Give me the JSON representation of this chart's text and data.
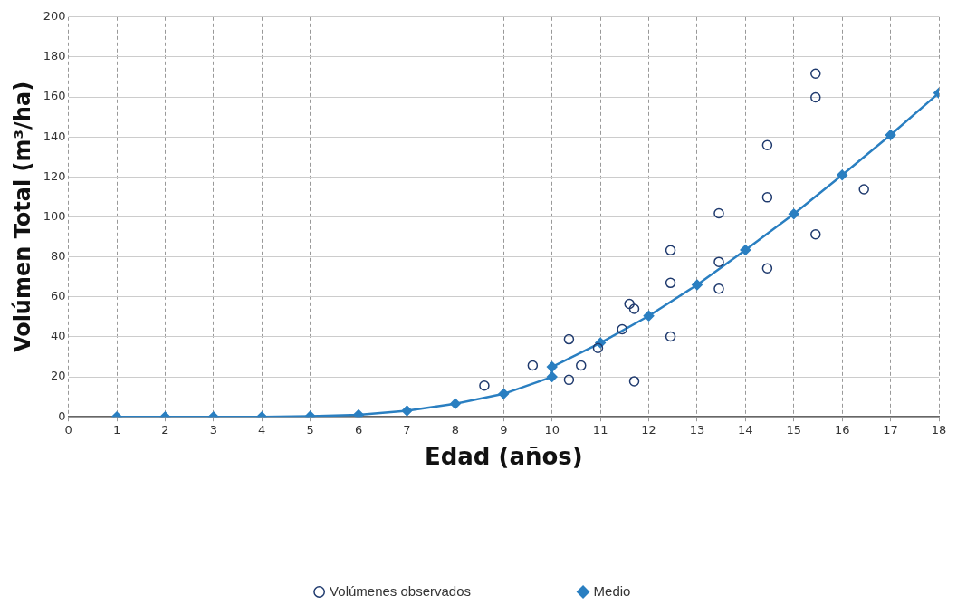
{
  "chart_data": {
    "type": "scatter",
    "xlabel": "Edad (años)",
    "ylabel": "Volúmen Total (m³/ha)",
    "xlim": [
      0,
      18
    ],
    "xticks": [
      0,
      1,
      2,
      3,
      4,
      5,
      6,
      7,
      8,
      9,
      10,
      11,
      12,
      13,
      14,
      15,
      16,
      17,
      18
    ],
    "ylim": [
      0,
      200
    ],
    "yticks": [
      0,
      20,
      40,
      60,
      80,
      100,
      120,
      140,
      160,
      180,
      200
    ],
    "grid": true,
    "legend": "bottom",
    "series": [
      {
        "name": "Volúmenes observados",
        "type": "scatter",
        "marker": "circle",
        "color": "#1f3a6e",
        "x": [
          8.6,
          9.6,
          10.35,
          10.35,
          10.6,
          10.95,
          11.45,
          11.6,
          11.7,
          11.7,
          12.45,
          12.45,
          12.45,
          13.45,
          13.45,
          13.45,
          14.45,
          14.45,
          14.45,
          15.45,
          15.45,
          15.45,
          16.45
        ],
        "values": [
          15.6,
          25.7,
          38.8,
          18.5,
          25.7,
          34.4,
          43.8,
          56.5,
          54,
          17.8,
          83.3,
          67,
          40.2,
          101.8,
          77.5,
          64.1,
          135.9,
          109.8,
          74.3,
          171.7,
          159.8,
          91.3,
          113.8
        ]
      },
      {
        "name": "Medio",
        "type": "line",
        "marker": "diamond",
        "line_style": "solid",
        "color": "#2a7fc1",
        "x": [
          1,
          2,
          3,
          4,
          5,
          6,
          7,
          8,
          9,
          10,
          10,
          11,
          12,
          13,
          14,
          15,
          16,
          17,
          18
        ],
        "values": [
          0,
          0,
          0,
          0,
          0.3,
          1,
          3,
          6.5,
          11.5,
          20,
          25,
          37,
          50.5,
          66,
          83.5,
          101.5,
          121,
          141,
          162
        ]
      }
    ]
  }
}
